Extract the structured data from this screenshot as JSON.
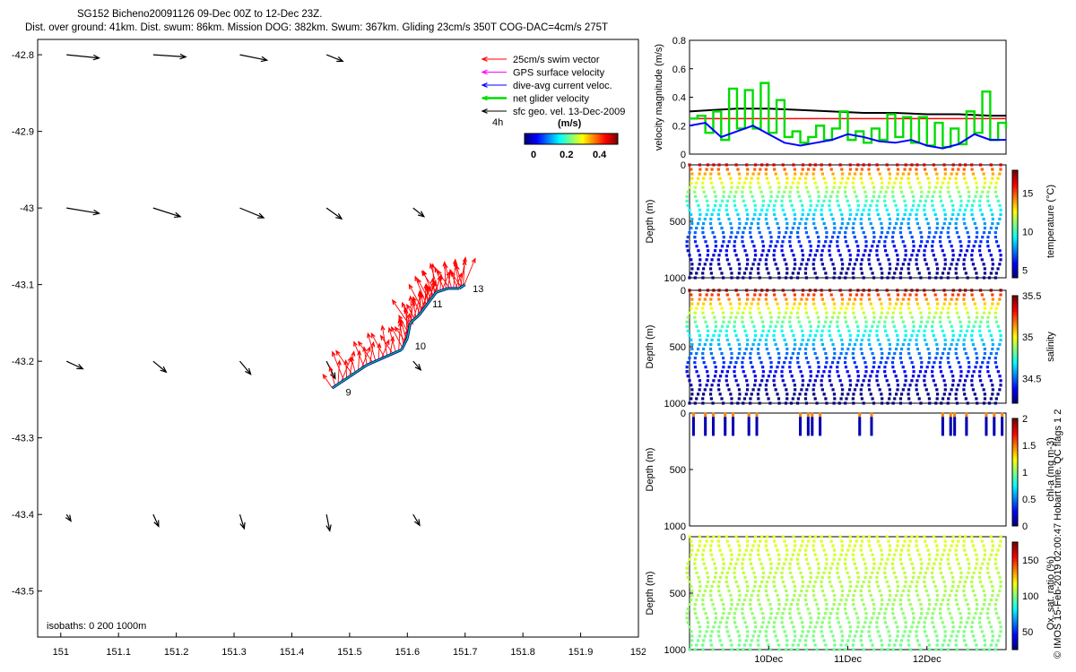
{
  "header": {
    "line1": "SG152 Bicheno20091126 09-Dec 00Z to 12-Dec 23Z.",
    "line2": "Dist. over ground: 41km. Dist. swum: 86km. Mission DOG: 382km. Swum: 367km. Gliding 23cm/s 350T COG-DAC=4cm/s 275T"
  },
  "legend": {
    "items": [
      {
        "label": "25cm/s swim vector",
        "color": "#ff0000"
      },
      {
        "label": "GPS surface velocity",
        "color": "#ff00ff"
      },
      {
        "label": "dive-avg current veloc.",
        "color": "#0000ff"
      },
      {
        "label": "net glider velocity",
        "color": "#00dd00"
      },
      {
        "label": "sfc geo. vel. 13-Dec-2009",
        "color": "#000000"
      }
    ],
    "time_marker": "4h",
    "colorbar_title": "(m/s)",
    "colorbar_ticks": [
      "0",
      "0.2",
      "0.4"
    ]
  },
  "map": {
    "isobaths_label": "isobaths: 0   200  1000m",
    "x_ticks": [
      "151",
      "151.1",
      "151.2",
      "151.3",
      "151.4",
      "151.5",
      "151.6",
      "151.7",
      "151.8",
      "151.9",
      "152"
    ],
    "y_ticks": [
      "-42.8",
      "-42.9",
      "-43",
      "-43.1",
      "-43.2",
      "-43.3",
      "-43.4",
      "-43.5"
    ],
    "xlim": [
      150.96,
      152.0
    ],
    "ylim": [
      -43.56,
      -42.78
    ],
    "day_labels": [
      "9",
      "10",
      "11",
      "13"
    ],
    "geo_vectors": [
      {
        "lon": 151.0,
        "lat": -42.8,
        "u": 0.3,
        "v": -0.03
      },
      {
        "lon": 151.15,
        "lat": -42.8,
        "u": 0.3,
        "v": -0.02
      },
      {
        "lon": 151.3,
        "lat": -42.8,
        "u": 0.25,
        "v": -0.05
      },
      {
        "lon": 151.45,
        "lat": -42.8,
        "u": 0.15,
        "v": -0.06
      },
      {
        "lon": 151.0,
        "lat": -43.0,
        "u": 0.3,
        "v": -0.05
      },
      {
        "lon": 151.15,
        "lat": -43.0,
        "u": 0.25,
        "v": -0.08
      },
      {
        "lon": 151.3,
        "lat": -43.0,
        "u": 0.22,
        "v": -0.09
      },
      {
        "lon": 151.45,
        "lat": -43.0,
        "u": 0.14,
        "v": -0.1
      },
      {
        "lon": 151.6,
        "lat": -43.0,
        "u": 0.1,
        "v": -0.08
      },
      {
        "lon": 151.0,
        "lat": -43.2,
        "u": 0.15,
        "v": -0.07
      },
      {
        "lon": 151.15,
        "lat": -43.2,
        "u": 0.12,
        "v": -0.1
      },
      {
        "lon": 151.3,
        "lat": -43.2,
        "u": 0.1,
        "v": -0.12
      },
      {
        "lon": 151.45,
        "lat": -43.2,
        "u": 0.08,
        "v": -0.16
      },
      {
        "lon": 151.6,
        "lat": -43.2,
        "u": 0.07,
        "v": -0.08
      },
      {
        "lon": 151.0,
        "lat": -43.4,
        "u": 0.04,
        "v": -0.06
      },
      {
        "lon": 151.15,
        "lat": -43.4,
        "u": 0.05,
        "v": -0.11
      },
      {
        "lon": 151.3,
        "lat": -43.4,
        "u": 0.04,
        "v": -0.13
      },
      {
        "lon": 151.45,
        "lat": -43.4,
        "u": 0.03,
        "v": -0.15
      },
      {
        "lon": 151.6,
        "lat": -43.4,
        "u": 0.06,
        "v": -0.1
      }
    ],
    "track": [
      [
        151.47,
        -43.235
      ],
      [
        151.5,
        -43.22
      ],
      [
        151.53,
        -43.205
      ],
      [
        151.56,
        -43.195
      ],
      [
        151.59,
        -43.185
      ],
      [
        151.6,
        -43.17
      ],
      [
        151.605,
        -43.15
      ],
      [
        151.62,
        -43.14
      ],
      [
        151.63,
        -43.13
      ],
      [
        151.64,
        -43.12
      ],
      [
        151.65,
        -43.11
      ],
      [
        151.67,
        -43.105
      ],
      [
        151.69,
        -43.105
      ],
      [
        151.7,
        -43.1
      ]
    ]
  },
  "chart_data": [
    {
      "type": "line",
      "title": "",
      "ylabel": "velocity magnitude (m/s)",
      "ylim": [
        0,
        0.8
      ],
      "yticks": [
        "0",
        "0.2",
        "0.4",
        "0.6",
        "0.8"
      ],
      "xlim_days": [
        9,
        13
      ],
      "series": [
        {
          "name": "net glider speed (black)",
          "color": "#000000",
          "x": [
            9.0,
            9.3,
            9.6,
            10.0,
            10.4,
            10.8,
            11.2,
            11.6,
            12.0,
            12.4,
            12.8,
            13.0
          ],
          "values": [
            0.3,
            0.31,
            0.32,
            0.32,
            0.31,
            0.3,
            0.29,
            0.29,
            0.28,
            0.28,
            0.27,
            0.27
          ]
        },
        {
          "name": "25cm/s reference (red)",
          "color": "#ff0000",
          "x": [
            9.0,
            13.0
          ],
          "values": [
            0.25,
            0.25
          ]
        },
        {
          "name": "GPS / surface velocity (green)",
          "color": "#00dd00",
          "x": [
            9.0,
            9.1,
            9.2,
            9.3,
            9.4,
            9.5,
            9.6,
            9.7,
            9.8,
            9.9,
            10.0,
            10.1,
            10.2,
            10.3,
            10.4,
            10.5,
            10.6,
            10.7,
            10.8,
            10.9,
            11.0,
            11.1,
            11.2,
            11.3,
            11.4,
            11.5,
            11.6,
            11.7,
            11.8,
            11.9,
            12.0,
            12.1,
            12.2,
            12.3,
            12.4,
            12.5,
            12.6,
            12.7,
            12.8,
            12.9,
            13.0
          ],
          "values": [
            0.25,
            0.27,
            0.15,
            0.3,
            0.1,
            0.46,
            0.18,
            0.45,
            0.18,
            0.5,
            0.15,
            0.38,
            0.12,
            0.16,
            0.08,
            0.12,
            0.2,
            0.1,
            0.18,
            0.3,
            0.1,
            0.16,
            0.08,
            0.18,
            0.1,
            0.28,
            0.12,
            0.26,
            0.08,
            0.26,
            0.06,
            0.22,
            0.05,
            0.18,
            0.07,
            0.3,
            0.15,
            0.44,
            0.1,
            0.22,
            0.18
          ]
        },
        {
          "name": "dive-avg current (blue)",
          "color": "#0000ff",
          "x": [
            9.0,
            9.2,
            9.4,
            9.6,
            9.8,
            10.0,
            10.2,
            10.4,
            10.6,
            10.8,
            11.0,
            11.2,
            11.4,
            11.6,
            11.8,
            12.0,
            12.2,
            12.4,
            12.6,
            12.8,
            13.0
          ],
          "values": [
            0.2,
            0.22,
            0.12,
            0.16,
            0.2,
            0.14,
            0.08,
            0.06,
            0.08,
            0.1,
            0.14,
            0.12,
            0.09,
            0.08,
            0.1,
            0.06,
            0.04,
            0.07,
            0.14,
            0.1,
            0.1
          ]
        }
      ]
    },
    {
      "type": "scatter",
      "ylabel": "Depth (m)",
      "ylim": [
        0,
        1000
      ],
      "yticks": [
        "0",
        "500",
        "1000"
      ],
      "colorbar_label": "temperature (°C)",
      "colorbar_ticks": [
        "5",
        "10",
        "15"
      ],
      "crange": [
        4,
        18
      ],
      "variable": "temperature",
      "profiles": 40,
      "max_depth": 1000
    },
    {
      "type": "scatter",
      "ylabel": "Depth (m)",
      "ylim": [
        0,
        1000
      ],
      "yticks": [
        "0",
        "500",
        "1000"
      ],
      "colorbar_label": "salinity",
      "colorbar_ticks": [
        "34.5",
        "35",
        "35.5"
      ],
      "crange": [
        34.2,
        35.5
      ],
      "variable": "salinity",
      "profiles": 40,
      "max_depth": 1000
    },
    {
      "type": "scatter",
      "ylabel": "Depth (m)",
      "ylim": [
        0,
        1000
      ],
      "yticks": [
        "0",
        "500",
        "1000"
      ],
      "colorbar_label": "chl-a (mg m-3)",
      "colorbar_ticks": [
        "0",
        "0.5",
        "1",
        "1.5",
        "2"
      ],
      "crange": [
        0,
        2
      ],
      "variable": "chl-a",
      "profiles_days": [
        9.05,
        9.2,
        9.3,
        9.45,
        9.55,
        9.75,
        9.85,
        10.4,
        10.5,
        10.55,
        10.65,
        11.15,
        11.3,
        12.2,
        12.3,
        12.35,
        12.5,
        12.75,
        12.85,
        12.95
      ],
      "max_depth": 200
    },
    {
      "type": "scatter",
      "ylabel": "Depth (m)",
      "ylim": [
        0,
        1000
      ],
      "yticks": [
        "0",
        "500",
        "1000"
      ],
      "colorbar_label": "Ox. sat. ratio (%)",
      "colorbar_ticks": [
        "50",
        "100",
        "150"
      ],
      "crange": [
        25,
        175
      ],
      "variable": "oxygen",
      "profiles": 40,
      "max_depth": 1000,
      "xticks": [
        "10Dec",
        "11Dec",
        "12Dec"
      ]
    }
  ],
  "footer": {
    "copyright": "© IMOS 15-Feb-2019 02:00:47 Hobart time. QC flags 1  2"
  }
}
